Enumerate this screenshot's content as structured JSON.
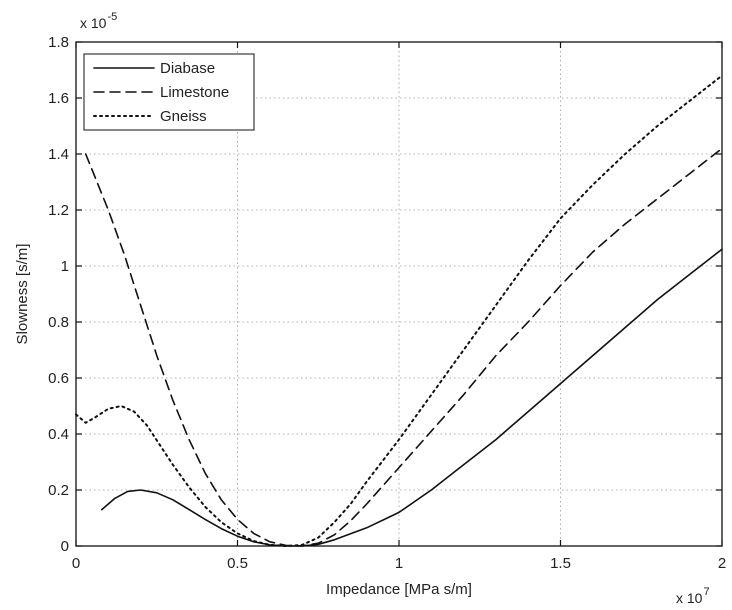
{
  "chart_data": {
    "type": "line",
    "title": "",
    "xlabel": "Impedance [MPa s/m]",
    "ylabel": "Slowness [s/m]",
    "x_multiplier_label": "x 10",
    "x_multiplier_exp": "7",
    "y_multiplier_label": "x 10",
    "y_multiplier_exp": "-5",
    "xlim": [
      0,
      2
    ],
    "ylim": [
      0,
      1.8
    ],
    "x_ticks": [
      0,
      0.5,
      1,
      1.5,
      2
    ],
    "x_tick_labels": [
      "0",
      "0.5",
      "1",
      "1.5",
      "2"
    ],
    "y_ticks": [
      0,
      0.2,
      0.4,
      0.6,
      0.8,
      1,
      1.2,
      1.4,
      1.6,
      1.8
    ],
    "y_tick_labels": [
      "0",
      "0.2",
      "0.4",
      "0.6",
      "0.8",
      "1",
      "1.2",
      "1.4",
      "1.6",
      "1.8"
    ],
    "grid": true,
    "legend_position": "top-left",
    "series": [
      {
        "name": "Diabase",
        "style": "solid",
        "x": [
          0.08,
          0.12,
          0.16,
          0.2,
          0.25,
          0.3,
          0.35,
          0.4,
          0.45,
          0.5,
          0.55,
          0.6,
          0.65,
          0.7,
          0.75,
          0.8,
          0.9,
          1.0,
          1.1,
          1.2,
          1.3,
          1.4,
          1.5,
          1.6,
          1.7,
          1.8,
          1.9,
          2.0
        ],
        "y": [
          0.13,
          0.17,
          0.195,
          0.2,
          0.19,
          0.165,
          0.13,
          0.095,
          0.062,
          0.035,
          0.015,
          0.004,
          0.0,
          0.0,
          0.006,
          0.022,
          0.065,
          0.12,
          0.2,
          0.29,
          0.38,
          0.48,
          0.58,
          0.68,
          0.78,
          0.88,
          0.97,
          1.06
        ]
      },
      {
        "name": "Limestone",
        "style": "dashed",
        "x": [
          0.03,
          0.1,
          0.15,
          0.2,
          0.25,
          0.3,
          0.35,
          0.4,
          0.45,
          0.5,
          0.55,
          0.6,
          0.65,
          0.7,
          0.75,
          0.8,
          0.85,
          0.9,
          1.0,
          1.1,
          1.2,
          1.3,
          1.4,
          1.5,
          1.6,
          1.7,
          1.8,
          1.9,
          2.0
        ],
        "y": [
          1.4,
          1.2,
          1.04,
          0.86,
          0.68,
          0.52,
          0.38,
          0.26,
          0.165,
          0.095,
          0.045,
          0.015,
          0.002,
          0.0,
          0.01,
          0.04,
          0.09,
          0.15,
          0.28,
          0.41,
          0.54,
          0.68,
          0.8,
          0.93,
          1.05,
          1.15,
          1.24,
          1.33,
          1.42
        ]
      },
      {
        "name": "Gneiss",
        "style": "dotted",
        "x": [
          0.0,
          0.03,
          0.06,
          0.1,
          0.14,
          0.18,
          0.22,
          0.26,
          0.3,
          0.35,
          0.4,
          0.45,
          0.5,
          0.55,
          0.6,
          0.65,
          0.7,
          0.75,
          0.8,
          0.85,
          0.9,
          1.0,
          1.1,
          1.2,
          1.3,
          1.4,
          1.5,
          1.6,
          1.7,
          1.8,
          1.9,
          2.0
        ],
        "y": [
          0.47,
          0.44,
          0.46,
          0.49,
          0.5,
          0.48,
          0.43,
          0.36,
          0.29,
          0.21,
          0.14,
          0.085,
          0.045,
          0.018,
          0.004,
          0.0,
          0.004,
          0.03,
          0.085,
          0.15,
          0.23,
          0.38,
          0.54,
          0.7,
          0.86,
          1.02,
          1.17,
          1.29,
          1.4,
          1.5,
          1.59,
          1.68
        ]
      }
    ]
  }
}
